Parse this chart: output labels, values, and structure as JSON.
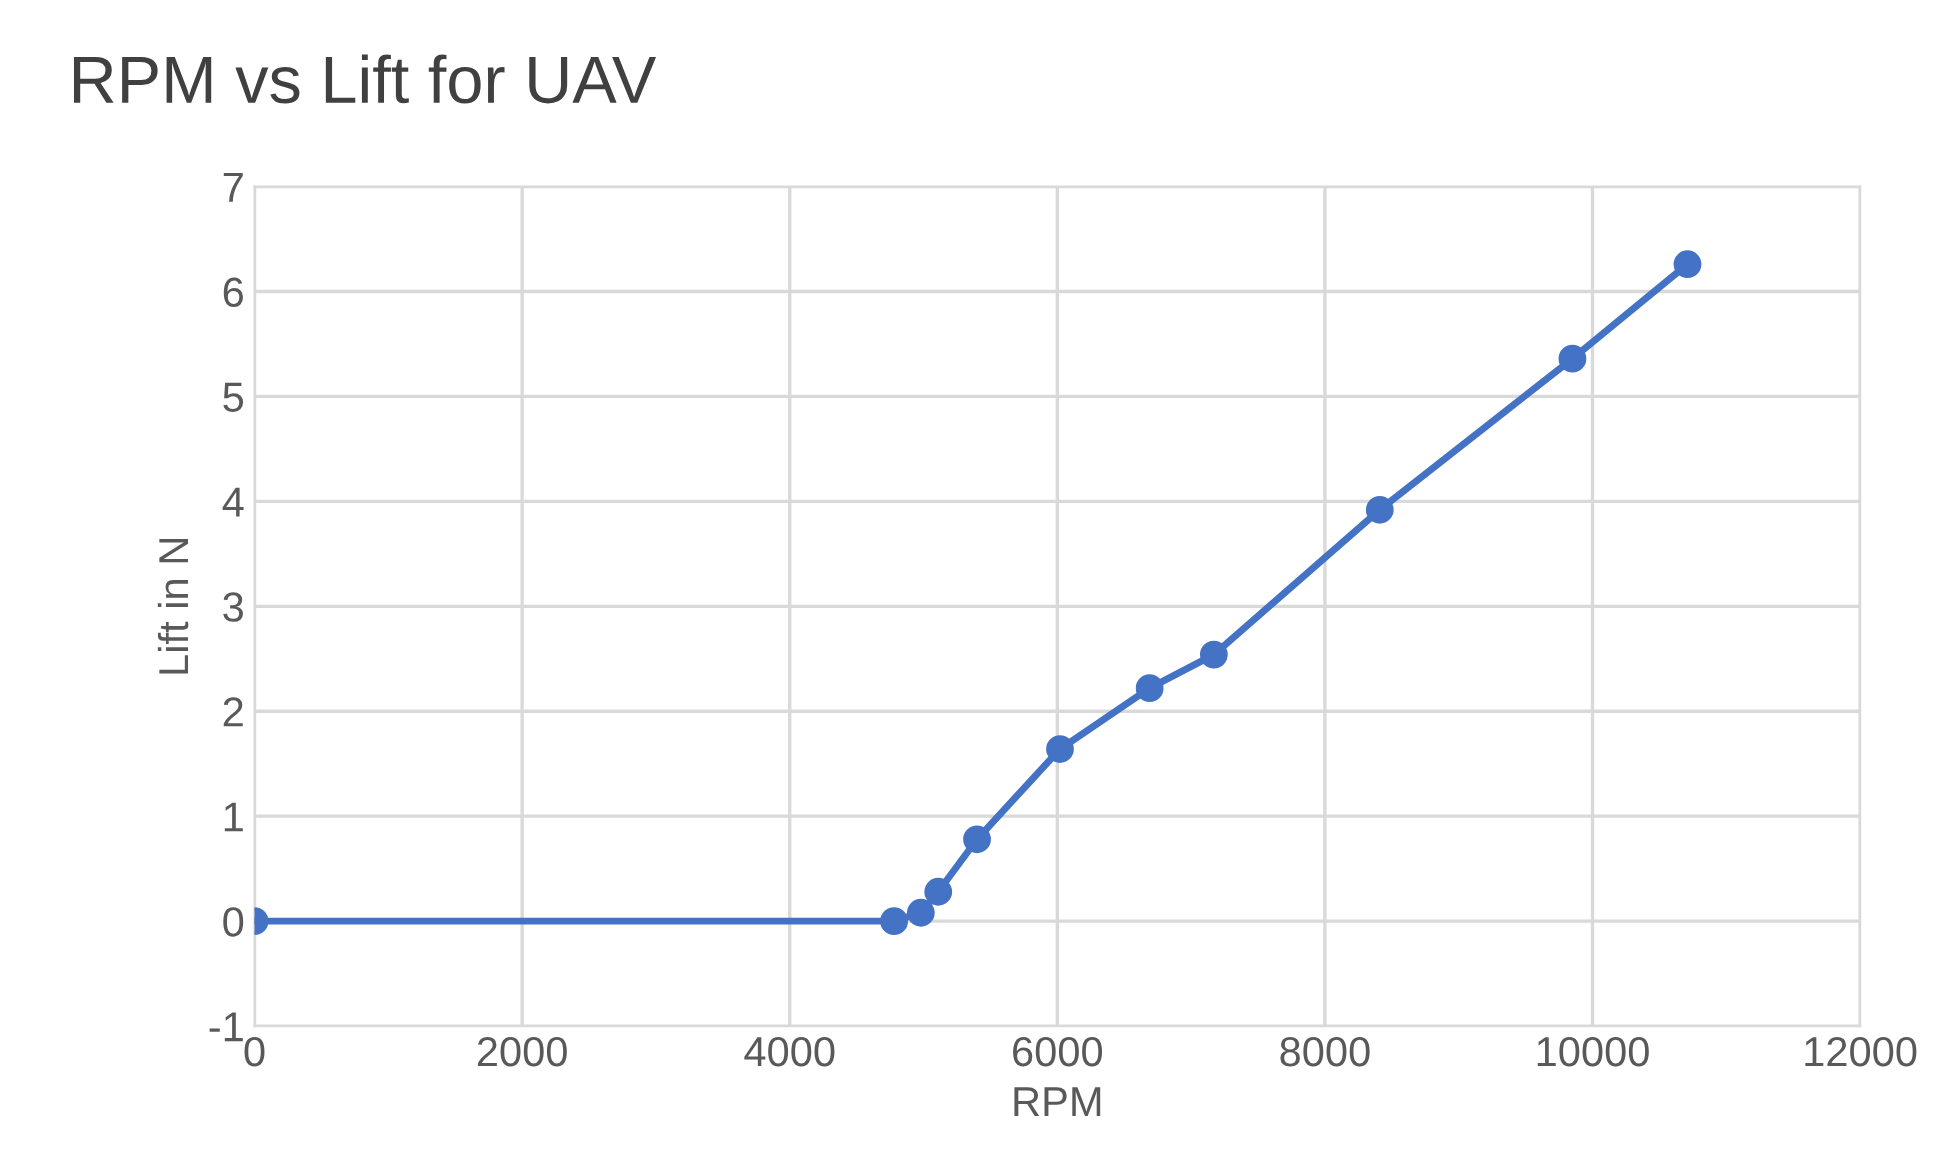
{
  "chart_data": {
    "type": "line",
    "title": "RPM vs Lift for UAV",
    "xlabel": "RPM",
    "ylabel": "Lift in N",
    "x": [
      0,
      4780,
      4980,
      5110,
      5400,
      6020,
      6690,
      7170,
      8410,
      9850,
      10710
    ],
    "series": [
      {
        "color": "#4472c4",
        "values": [
          0,
          0,
          0.08,
          0.28,
          0.78,
          1.64,
          2.22,
          2.54,
          3.92,
          5.36,
          6.26
        ]
      }
    ],
    "xlim": [
      0,
      12000
    ],
    "xticks": [
      0,
      2000,
      4000,
      6000,
      8000,
      10000,
      12000
    ],
    "ylim": [
      -1,
      7
    ],
    "yticks": [
      -1,
      0,
      1,
      2,
      3,
      4,
      5,
      6,
      7
    ],
    "grid": true,
    "marker": "circle",
    "line_style": "solid",
    "legend": false
  }
}
